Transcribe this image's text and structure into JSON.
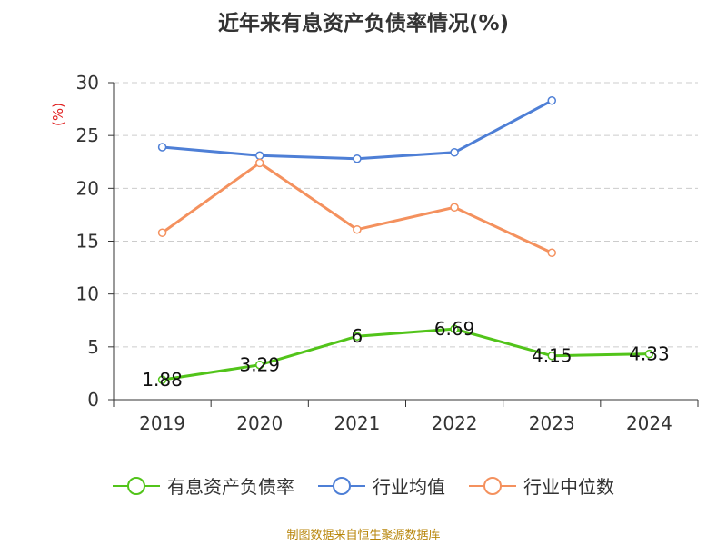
{
  "chart_data": {
    "type": "line",
    "title": "近年来有息资产负债率情况(%)",
    "ylabel": "(%)",
    "xlabel": "",
    "ylim": [
      0,
      30
    ],
    "yticks": [
      0,
      5,
      10,
      15,
      20,
      25,
      30
    ],
    "grid": true,
    "legend_position": "bottom",
    "categories": [
      "2019",
      "2020",
      "2021",
      "2022",
      "2023",
      "2024"
    ],
    "series": [
      {
        "name": "有息资产负债率",
        "values": [
          1.88,
          3.29,
          6,
          6.69,
          4.15,
          4.33
        ],
        "labels": [
          "1.88",
          "3.29",
          "6",
          "6.69",
          "4.15",
          "4.33"
        ],
        "color": "#52c41a"
      },
      {
        "name": "行业均值",
        "values": [
          23.9,
          23.1,
          22.8,
          23.4,
          28.3,
          null
        ],
        "color": "#4e7fd6"
      },
      {
        "name": "行业中位数",
        "values": [
          15.8,
          22.4,
          16.1,
          18.2,
          13.9,
          null
        ],
        "color": "#f4915e"
      }
    ]
  },
  "source": "制图数据来自恒生聚源数据库"
}
